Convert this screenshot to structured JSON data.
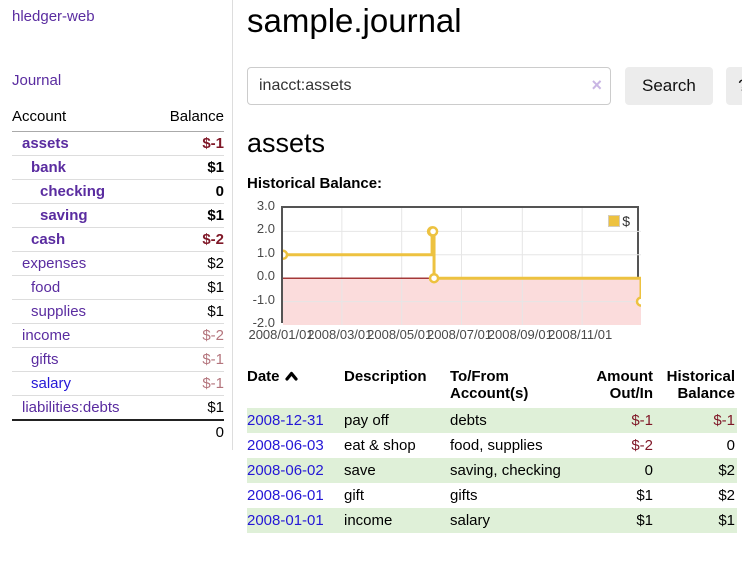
{
  "app": {
    "brand": "hledger-web",
    "nav_journal": "Journal"
  },
  "sidebar": {
    "headers": {
      "account": "Account",
      "balance": "Balance"
    },
    "accounts": [
      {
        "name": "assets",
        "balance": "$-1",
        "level": 1,
        "bold": true,
        "link": "purple",
        "balance_style": "neg-strong"
      },
      {
        "name": "bank",
        "balance": "$1",
        "level": 2,
        "bold": true,
        "link": "purple",
        "balance_style": "plain"
      },
      {
        "name": "checking",
        "balance": "0",
        "level": 3,
        "bold": true,
        "link": "purple",
        "balance_style": "plain"
      },
      {
        "name": "saving",
        "balance": "$1",
        "level": 3,
        "bold": true,
        "link": "purple",
        "balance_style": "plain"
      },
      {
        "name": "cash",
        "balance": "$-2",
        "level": 2,
        "bold": true,
        "link": "purple",
        "balance_style": "neg-strong"
      },
      {
        "name": "expenses",
        "balance": "$2",
        "level": 1,
        "bold": false,
        "link": "purple",
        "balance_style": "plain"
      },
      {
        "name": "food",
        "balance": "$1",
        "level": 2,
        "bold": false,
        "link": "purple",
        "balance_style": "plain"
      },
      {
        "name": "supplies",
        "balance": "$1",
        "level": 2,
        "bold": false,
        "link": "purple",
        "balance_style": "plain"
      },
      {
        "name": "income",
        "balance": "$-2",
        "level": 1,
        "bold": false,
        "link": "purple",
        "balance_style": "neg-soft"
      },
      {
        "name": "gifts",
        "balance": "$-1",
        "level": 2,
        "bold": false,
        "link": "purple",
        "balance_style": "neg-soft"
      },
      {
        "name": "salary",
        "balance": "$-1",
        "level": 2,
        "bold": false,
        "link": "blue",
        "balance_style": "neg-soft"
      },
      {
        "name": "liabilities:debts",
        "balance": "$1",
        "level": 1,
        "bold": false,
        "link": "purple",
        "balance_style": "plain"
      }
    ],
    "total": "0"
  },
  "header": {
    "title": "sample.journal"
  },
  "search": {
    "value": "inacct:assets",
    "clear_icon": "×",
    "button_label": "Search",
    "help_label": "?"
  },
  "account_page": {
    "heading": "assets",
    "chart_label": "Historical Balance:"
  },
  "chart_data": {
    "type": "line",
    "step": true,
    "title": "Historical Balance",
    "series": [
      {
        "name": "$",
        "color": "#edc240",
        "points": [
          [
            "2008-01-01",
            1
          ],
          [
            "2008-06-01",
            2
          ],
          [
            "2008-06-02",
            2
          ],
          [
            "2008-06-03",
            0
          ],
          [
            "2008-12-31",
            -1
          ]
        ]
      }
    ],
    "x_start": "2008-01-01",
    "x_end": "2008-12-31",
    "xticks": [
      {
        "label": "2008/01/01",
        "date": "2008-01-01"
      },
      {
        "label": "2008/03/01",
        "date": "2008-03-01"
      },
      {
        "label": "2008/05/01",
        "date": "2008-05-01"
      },
      {
        "label": "2008/07/01",
        "date": "2008-07-01"
      },
      {
        "label": "2008/09/01",
        "date": "2008-09-01"
      },
      {
        "label": "2008/11/01",
        "date": "2008-11-01"
      }
    ],
    "yticks": [
      "3.0",
      "2.0",
      "1.0",
      "0.0",
      "-1.0",
      "-2.0"
    ],
    "ylim": [
      -2,
      3
    ],
    "grid": true,
    "legend": {
      "label": "$",
      "position": "top-right"
    },
    "colors": {
      "line": "#edc240",
      "marker_fill": "#ffffff",
      "negative_region": "#fbdcdc",
      "zero_line": "#8b0000",
      "gridline": "#e6e6e6"
    }
  },
  "register": {
    "headers": {
      "date": "Date",
      "description": "Description",
      "accounts": "To/From Account(s)",
      "amount": "Amount Out/In",
      "balance": "Historical Balance"
    },
    "rows": [
      {
        "date": "2008-12-31",
        "description": "pay off",
        "accounts": "debts",
        "amount": "$-1",
        "balance": "$-1"
      },
      {
        "date": "2008-06-03",
        "description": "eat & shop",
        "accounts": "food, supplies",
        "amount": "$-2",
        "balance": "0"
      },
      {
        "date": "2008-06-02",
        "description": "save",
        "accounts": "saving, checking",
        "amount": "0",
        "balance": "$2"
      },
      {
        "date": "2008-06-01",
        "description": "gift",
        "accounts": "gifts",
        "amount": "$1",
        "balance": "$2"
      },
      {
        "date": "2008-01-01",
        "description": "income",
        "accounts": "salary",
        "amount": "$1",
        "balance": "$1"
      }
    ]
  }
}
